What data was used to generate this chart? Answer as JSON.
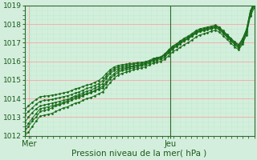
{
  "bg_color": "#d4eedd",
  "grid_color_major": "#ff9999",
  "grid_color_minor": "#bbeecc",
  "line_color": "#1a6b1a",
  "marker_color": "#1a6b1a",
  "axis_label_color": "#1a5c1a",
  "tick_label_color": "#1a5c1a",
  "border_color": "#2d6b2d",
  "xlabel": "Pression niveau de la mer( hPa )",
  "ylim": [
    1012,
    1019
  ],
  "yticks": [
    1012,
    1013,
    1014,
    1015,
    1016,
    1017,
    1018,
    1019
  ],
  "xtick_labels": [
    "Mer",
    "Jeu"
  ],
  "xtick_positions": [
    0.02,
    0.635
  ],
  "vline_x": 0.635,
  "n_points": 60,
  "series": [
    [
      1012.2,
      1012.5,
      1012.8,
      1013.0,
      1013.3,
      1013.35,
      1013.4,
      1013.5,
      1013.6,
      1013.65,
      1013.75,
      1013.8,
      1013.9,
      1014.0,
      1014.05,
      1014.15,
      1014.25,
      1014.3,
      1014.4,
      1014.5,
      1014.55,
      1014.8,
      1015.05,
      1015.25,
      1015.4,
      1015.5,
      1015.55,
      1015.6,
      1015.65,
      1015.7,
      1015.75,
      1015.8,
      1015.9,
      1016.0,
      1016.05,
      1016.1,
      1016.2,
      1016.45,
      1016.65,
      1016.8,
      1016.95,
      1017.1,
      1017.2,
      1017.35,
      1017.5,
      1017.6,
      1017.65,
      1017.7,
      1017.75,
      1017.8,
      1017.7,
      1017.5,
      1017.3,
      1017.1,
      1016.9,
      1016.7,
      1017.0,
      1017.5,
      1018.5,
      1019.0
    ],
    [
      1012.7,
      1013.0,
      1013.25,
      1013.45,
      1013.6,
      1013.65,
      1013.7,
      1013.75,
      1013.8,
      1013.85,
      1013.9,
      1013.95,
      1014.05,
      1014.15,
      1014.2,
      1014.3,
      1014.4,
      1014.45,
      1014.55,
      1014.65,
      1014.8,
      1015.1,
      1015.35,
      1015.5,
      1015.6,
      1015.65,
      1015.7,
      1015.73,
      1015.76,
      1015.8,
      1015.83,
      1015.88,
      1015.98,
      1016.08,
      1016.15,
      1016.2,
      1016.35,
      1016.55,
      1016.75,
      1016.88,
      1017.02,
      1017.18,
      1017.28,
      1017.42,
      1017.55,
      1017.65,
      1017.72,
      1017.78,
      1017.82,
      1017.88,
      1017.78,
      1017.58,
      1017.38,
      1017.18,
      1016.98,
      1016.82,
      1017.12,
      1017.62,
      1018.62,
      1019.1
    ],
    [
      1013.1,
      1013.3,
      1013.5,
      1013.7,
      1013.85,
      1013.9,
      1013.92,
      1013.95,
      1014.0,
      1014.05,
      1014.1,
      1014.15,
      1014.2,
      1014.3,
      1014.35,
      1014.45,
      1014.55,
      1014.6,
      1014.7,
      1014.8,
      1014.95,
      1015.2,
      1015.45,
      1015.6,
      1015.7,
      1015.73,
      1015.78,
      1015.82,
      1015.85,
      1015.88,
      1015.9,
      1015.92,
      1016.0,
      1016.1,
      1016.17,
      1016.22,
      1016.38,
      1016.58,
      1016.78,
      1016.9,
      1017.05,
      1017.2,
      1017.3,
      1017.45,
      1017.6,
      1017.7,
      1017.75,
      1017.8,
      1017.85,
      1017.9,
      1017.82,
      1017.62,
      1017.42,
      1017.22,
      1017.02,
      1016.88,
      1017.2,
      1017.7,
      1018.7,
      1019.15
    ],
    [
      1013.4,
      1013.6,
      1013.8,
      1013.95,
      1014.1,
      1014.12,
      1014.15,
      1014.18,
      1014.2,
      1014.25,
      1014.3,
      1014.35,
      1014.42,
      1014.52,
      1014.57,
      1014.65,
      1014.72,
      1014.77,
      1014.87,
      1014.97,
      1015.12,
      1015.35,
      1015.55,
      1015.7,
      1015.78,
      1015.82,
      1015.85,
      1015.88,
      1015.9,
      1015.93,
      1015.95,
      1015.98,
      1016.05,
      1016.15,
      1016.2,
      1016.25,
      1016.4,
      1016.62,
      1016.82,
      1016.95,
      1017.1,
      1017.25,
      1017.35,
      1017.5,
      1017.65,
      1017.75,
      1017.8,
      1017.85,
      1017.9,
      1017.95,
      1017.85,
      1017.65,
      1017.45,
      1017.25,
      1017.05,
      1016.9,
      1017.22,
      1017.72,
      1018.72,
      1019.18
    ],
    [
      1012.0,
      1012.2,
      1012.5,
      1012.8,
      1013.05,
      1013.1,
      1013.15,
      1013.2,
      1013.3,
      1013.4,
      1013.5,
      1013.55,
      1013.65,
      1013.75,
      1013.8,
      1013.9,
      1014.0,
      1014.05,
      1014.15,
      1014.25,
      1014.35,
      1014.6,
      1014.85,
      1015.1,
      1015.25,
      1015.35,
      1015.42,
      1015.48,
      1015.55,
      1015.6,
      1015.65,
      1015.7,
      1015.8,
      1015.9,
      1015.95,
      1016.0,
      1016.1,
      1016.3,
      1016.5,
      1016.62,
      1016.75,
      1016.9,
      1017.0,
      1017.15,
      1017.3,
      1017.42,
      1017.48,
      1017.55,
      1017.62,
      1017.68,
      1017.58,
      1017.38,
      1017.18,
      1016.98,
      1016.78,
      1016.62,
      1016.92,
      1017.42,
      1018.42,
      1018.88
    ],
    [
      1012.4,
      1012.65,
      1012.95,
      1013.2,
      1013.45,
      1013.5,
      1013.55,
      1013.6,
      1013.65,
      1013.72,
      1013.8,
      1013.88,
      1013.98,
      1014.08,
      1014.13,
      1014.2,
      1014.28,
      1014.33,
      1014.43,
      1014.53,
      1014.65,
      1014.9,
      1015.15,
      1015.35,
      1015.5,
      1015.57,
      1015.63,
      1015.68,
      1015.73,
      1015.77,
      1015.82,
      1015.87,
      1015.97,
      1016.07,
      1016.12,
      1016.17,
      1016.28,
      1016.5,
      1016.7,
      1016.82,
      1016.95,
      1017.12,
      1017.22,
      1017.37,
      1017.52,
      1017.62,
      1017.67,
      1017.73,
      1017.78,
      1017.83,
      1017.73,
      1017.53,
      1017.33,
      1017.13,
      1016.93,
      1016.75,
      1017.07,
      1017.57,
      1018.57,
      1019.03
    ]
  ]
}
